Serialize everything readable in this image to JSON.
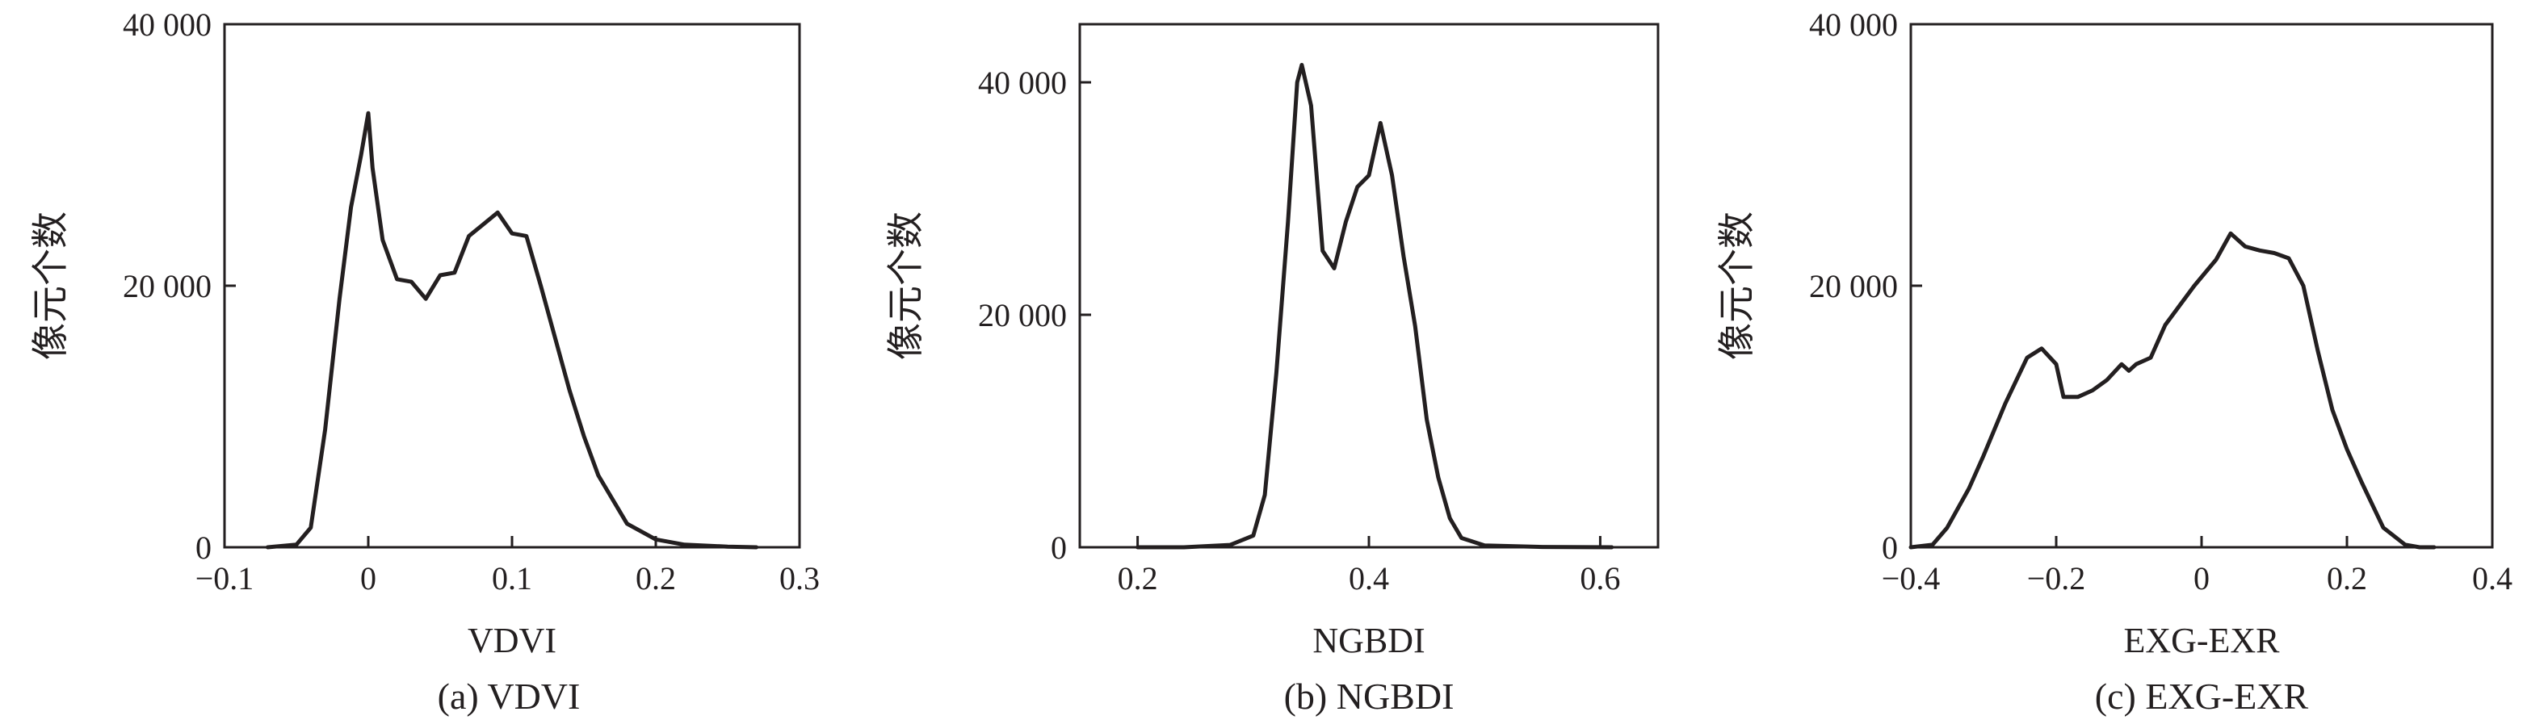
{
  "chart_data": [
    {
      "type": "line",
      "xlabel": "VDVI",
      "ylabel": "像元个数",
      "caption": "(a) VDVI",
      "xlim": [
        -0.1,
        0.3
      ],
      "ylim": [
        0,
        40000
      ],
      "xticks": [
        -0.1,
        0,
        0.1,
        0.2,
        0.3
      ],
      "xtick_labels": [
        "−0.1",
        "0",
        "0.1",
        "0.2",
        "0.3"
      ],
      "yticks": [
        0,
        20000,
        40000
      ],
      "ytick_labels": [
        "0",
        "20 000",
        "40 000"
      ],
      "x": [
        -0.07,
        -0.05,
        -0.04,
        -0.03,
        -0.02,
        -0.012,
        -0.005,
        0.0,
        0.003,
        0.01,
        0.02,
        0.03,
        0.04,
        0.05,
        0.06,
        0.07,
        0.08,
        0.09,
        0.1,
        0.11,
        0.12,
        0.14,
        0.15,
        0.16,
        0.18,
        0.2,
        0.22,
        0.25,
        0.27
      ],
      "y": [
        0,
        200,
        1500,
        9000,
        19000,
        26000,
        30000,
        33200,
        29000,
        23500,
        20500,
        20300,
        19000,
        20800,
        21000,
        23800,
        24700,
        25600,
        24000,
        23800,
        20000,
        12000,
        8500,
        5500,
        1800,
        600,
        200,
        50,
        0
      ]
    },
    {
      "type": "line",
      "xlabel": "NGBDI",
      "ylabel": "像元个数",
      "caption": "(b) NGBDI",
      "xlim": [
        0.15,
        0.65
      ],
      "ylim": [
        0,
        45000
      ],
      "xticks": [
        0.2,
        0.4,
        0.6
      ],
      "xtick_labels": [
        "0.2",
        "0.4",
        "0.6"
      ],
      "yticks": [
        0,
        20000,
        40000
      ],
      "ytick_labels": [
        "0",
        "20 000",
        "40 000"
      ],
      "x": [
        0.2,
        0.24,
        0.28,
        0.3,
        0.31,
        0.32,
        0.33,
        0.338,
        0.342,
        0.35,
        0.36,
        0.37,
        0.38,
        0.39,
        0.4,
        0.41,
        0.42,
        0.43,
        0.44,
        0.45,
        0.46,
        0.47,
        0.48,
        0.5,
        0.55,
        0.61
      ],
      "y": [
        0,
        0,
        200,
        1000,
        4500,
        15000,
        28000,
        40000,
        41500,
        38000,
        25500,
        24000,
        28000,
        31000,
        32000,
        36500,
        32000,
        25000,
        19000,
        11000,
        6000,
        2500,
        800,
        150,
        30,
        0
      ]
    },
    {
      "type": "line",
      "xlabel": "EXG-EXR",
      "ylabel": "像元个数",
      "caption": "(c) EXG-EXR",
      "xlim": [
        -0.4,
        0.4
      ],
      "ylim": [
        0,
        40000
      ],
      "xticks": [
        -0.4,
        -0.2,
        0,
        0.2,
        0.4
      ],
      "xtick_labels": [
        "−0.4",
        "−0.2",
        "0",
        "0.2",
        "0.4"
      ],
      "yticks": [
        0,
        20000,
        40000
      ],
      "ytick_labels": [
        "0",
        "20 000",
        "40 000"
      ],
      "x": [
        -0.4,
        -0.37,
        -0.35,
        -0.32,
        -0.3,
        -0.27,
        -0.24,
        -0.22,
        -0.2,
        -0.19,
        -0.17,
        -0.15,
        -0.13,
        -0.11,
        -0.1,
        -0.09,
        -0.07,
        -0.05,
        -0.03,
        -0.01,
        0.02,
        0.04,
        0.06,
        0.08,
        0.1,
        0.12,
        0.14,
        0.16,
        0.18,
        0.2,
        0.22,
        0.25,
        0.28,
        0.3,
        0.32
      ],
      "y": [
        0,
        200,
        1500,
        4500,
        7000,
        11000,
        14500,
        15200,
        14000,
        11500,
        11500,
        12000,
        12800,
        14000,
        13500,
        14000,
        14500,
        17000,
        18500,
        20000,
        22000,
        24000,
        23000,
        22700,
        22500,
        22100,
        20000,
        15000,
        10500,
        7500,
        5000,
        1500,
        200,
        0,
        0
      ]
    }
  ]
}
